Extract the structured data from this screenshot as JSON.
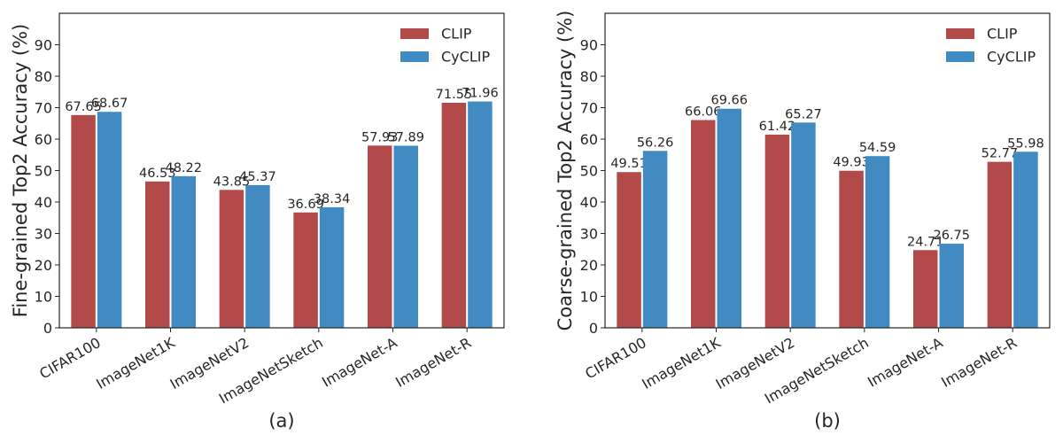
{
  "colors": {
    "clip": "#b24a4a",
    "cyclip": "#418bc2",
    "axis": "#262626"
  },
  "chart_data": [
    {
      "type": "bar",
      "caption": "(a)",
      "ylabel": "Fine-grained Top2 Accuracy (%)",
      "xlabel": "",
      "ylim": [
        0,
        100
      ],
      "yticks": [
        0,
        10,
        20,
        30,
        40,
        50,
        60,
        70,
        80,
        90
      ],
      "grid": false,
      "legend_position": "top-right",
      "categories": [
        "CIFAR100",
        "ImageNet1K",
        "ImageNetV2",
        "ImageNetSketch",
        "ImageNet-A",
        "ImageNet-R"
      ],
      "series": [
        {
          "name": "CLIP",
          "values": [
            67.65,
            46.53,
            43.85,
            36.69,
            57.93,
            71.55
          ],
          "labels": [
            "67.65",
            "46.53",
            "43.85",
            "36.69",
            "57.93",
            "71.55"
          ]
        },
        {
          "name": "CyCLIP",
          "values": [
            68.67,
            48.22,
            45.37,
            38.34,
            57.89,
            71.96
          ],
          "labels": [
            "68.67",
            "48.22",
            "45.37",
            "38.34",
            "57.89",
            "71.96"
          ]
        }
      ]
    },
    {
      "type": "bar",
      "caption": "(b)",
      "ylabel": "Coarse-grained Top2 Accuracy (%)",
      "xlabel": "",
      "ylim": [
        0,
        100
      ],
      "yticks": [
        0,
        10,
        20,
        30,
        40,
        50,
        60,
        70,
        80,
        90
      ],
      "grid": false,
      "legend_position": "top-right",
      "categories": [
        "CIFAR100",
        "ImageNet1K",
        "ImageNetV2",
        "ImageNetSketch",
        "ImageNet-A",
        "ImageNet-R"
      ],
      "series": [
        {
          "name": "CLIP",
          "values": [
            49.51,
            66.06,
            61.42,
            49.93,
            24.71,
            52.77
          ],
          "labels": [
            "49.51",
            "66.06",
            "61.42",
            "49.93",
            "24.71",
            "52.77"
          ]
        },
        {
          "name": "CyCLIP",
          "values": [
            56.26,
            69.66,
            65.27,
            54.59,
            26.75,
            55.98
          ],
          "labels": [
            "56.26",
            "69.66",
            "65.27",
            "54.59",
            "26.75",
            "55.98"
          ]
        }
      ]
    }
  ]
}
